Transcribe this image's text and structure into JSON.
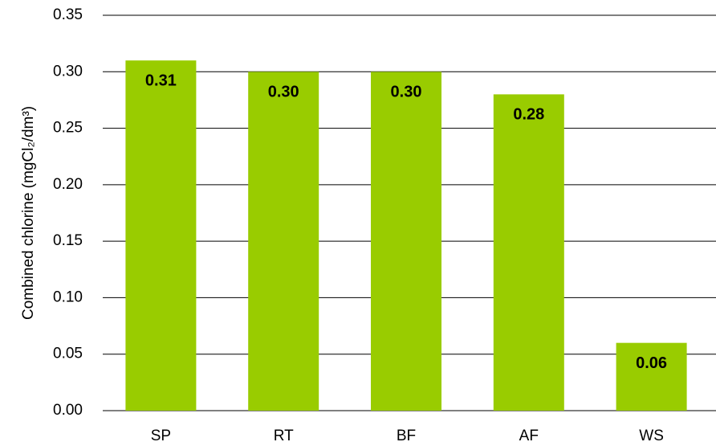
{
  "chart_data": {
    "type": "bar",
    "y_label": "Combined chlorine (mgCl₂/dm³)",
    "categories": [
      "SP",
      "RT",
      "BF",
      "AF",
      "WS"
    ],
    "values": [
      0.31,
      0.3,
      0.3,
      0.28,
      0.06
    ],
    "value_labels": [
      "0.31",
      "0.30",
      "0.30",
      "0.28",
      "0.06"
    ],
    "color": "#99cc00",
    "ylim": [
      0,
      0.35
    ],
    "yticks": [
      {
        "value": 0,
        "label": "0.00"
      },
      {
        "value": 0.05,
        "label": "0.05"
      },
      {
        "value": 0.1,
        "label": "0.10"
      },
      {
        "value": 0.15,
        "label": "0.15"
      },
      {
        "value": 0.2,
        "label": "0.20"
      },
      {
        "value": 0.25,
        "label": "0.25"
      },
      {
        "value": 0.3,
        "label": "0.30"
      },
      {
        "value": 0.35,
        "label": "0.35"
      }
    ],
    "grid": true
  }
}
